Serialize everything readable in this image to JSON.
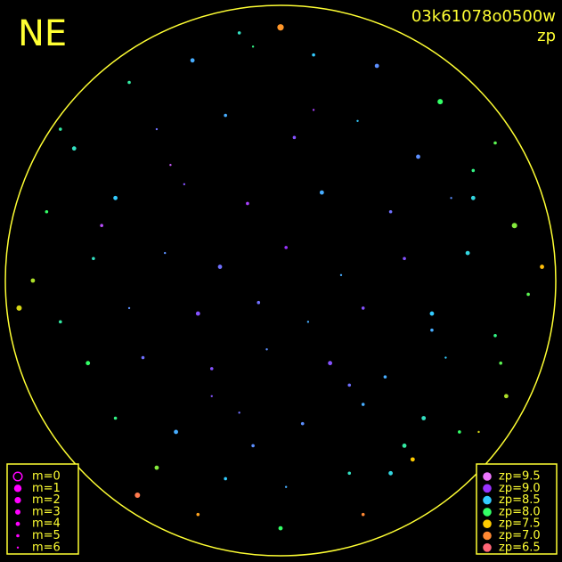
{
  "chart_data": {
    "type": "scatter",
    "title": "NE",
    "subtitle": "03k61078o0500w",
    "color_label": "zp",
    "xlim": [
      -1,
      1
    ],
    "ylim": [
      -1,
      1
    ],
    "frame_color": "#ffff33",
    "x": [
      -0.55,
      -0.32,
      -0.1,
      0.12,
      0.35,
      0.58,
      0.78,
      -0.75,
      -0.45,
      -0.2,
      0.05,
      0.28,
      0.5,
      0.7,
      -0.85,
      -0.6,
      -0.35,
      -0.12,
      0.15,
      0.4,
      0.62,
      0.85,
      -0.9,
      -0.68,
      -0.42,
      -0.22,
      0.02,
      0.22,
      0.45,
      0.68,
      0.9,
      -0.8,
      -0.55,
      -0.3,
      -0.08,
      0.1,
      0.3,
      0.55,
      0.78,
      -0.7,
      -0.5,
      -0.25,
      -0.05,
      0.18,
      0.38,
      0.6,
      0.8,
      -0.6,
      -0.38,
      -0.15,
      0.08,
      0.3,
      0.52,
      0.72,
      -0.45,
      -0.2,
      0.02,
      0.25,
      0.48,
      -0.3,
      0.0,
      0.3,
      -0.95,
      0.95,
      -0.15,
      0.45,
      -0.65,
      0.65,
      -0.4,
      0.4,
      0.0,
      -0.8,
      0.82,
      -0.25,
      0.25,
      -0.52,
      0.55,
      0.12,
      -0.1,
      0.7
    ],
    "y": [
      0.72,
      0.8,
      0.85,
      0.82,
      0.78,
      0.65,
      0.5,
      0.48,
      0.55,
      0.6,
      0.52,
      0.58,
      0.45,
      0.4,
      0.25,
      0.3,
      0.35,
      0.28,
      0.32,
      0.25,
      0.3,
      0.2,
      0.0,
      0.08,
      0.1,
      0.05,
      0.12,
      0.02,
      0.08,
      0.1,
      -0.05,
      -0.15,
      -0.1,
      -0.12,
      -0.08,
      -0.15,
      -0.1,
      -0.12,
      -0.2,
      -0.3,
      -0.28,
      -0.32,
      -0.25,
      -0.3,
      -0.35,
      -0.28,
      -0.3,
      -0.5,
      -0.55,
      -0.48,
      -0.52,
      -0.45,
      -0.5,
      -0.55,
      -0.68,
      -0.72,
      -0.75,
      -0.7,
      -0.65,
      -0.85,
      -0.9,
      -0.85,
      -0.1,
      0.05,
      0.9,
      -0.6,
      0.2,
      -0.55,
      0.42,
      -0.7,
      0.92,
      0.55,
      -0.42,
      -0.42,
      -0.38,
      -0.78,
      -0.18,
      0.62,
      -0.6,
      0.3
    ],
    "m": [
      5,
      4,
      6,
      5,
      4,
      3,
      5,
      4,
      6,
      5,
      5,
      6,
      4,
      5,
      5,
      4,
      6,
      5,
      4,
      5,
      6,
      3,
      4,
      5,
      6,
      4,
      5,
      6,
      5,
      4,
      5,
      5,
      6,
      4,
      5,
      6,
      5,
      4,
      5,
      4,
      5,
      5,
      6,
      4,
      5,
      6,
      5,
      5,
      4,
      6,
      5,
      5,
      4,
      6,
      4,
      5,
      6,
      5,
      4,
      5,
      4,
      5,
      3,
      4,
      5,
      4,
      5,
      5,
      6,
      4,
      2,
      5,
      4,
      6,
      5,
      3,
      5,
      6,
      5,
      4
    ],
    "zp": [
      8.2,
      8.6,
      8.1,
      8.5,
      8.7,
      8.0,
      7.9,
      8.3,
      8.8,
      8.6,
      8.9,
      8.5,
      8.7,
      8.1,
      8.0,
      8.5,
      8.9,
      9.1,
      8.6,
      8.8,
      8.7,
      7.8,
      7.7,
      8.3,
      8.7,
      8.8,
      9.0,
      8.6,
      8.9,
      8.4,
      7.9,
      8.2,
      8.7,
      8.9,
      8.8,
      8.6,
      8.9,
      8.5,
      8.1,
      8.0,
      8.8,
      8.9,
      8.7,
      8.9,
      8.6,
      8.5,
      7.9,
      8.1,
      8.6,
      8.8,
      8.7,
      8.6,
      8.3,
      7.6,
      7.8,
      8.5,
      8.6,
      8.3,
      7.5,
      7.2,
      8.0,
      7.0,
      7.6,
      7.4,
      8.3,
      8.2,
      9.2,
      8.0,
      9.3,
      8.4,
      7.1,
      8.2,
      7.7,
      8.9,
      8.8,
      6.8,
      8.6,
      9.1,
      8.7,
      8.4
    ],
    "size_legend": [
      {
        "value": 0,
        "label": "m=0"
      },
      {
        "value": 1,
        "label": "m=1"
      },
      {
        "value": 2,
        "label": "m=2"
      },
      {
        "value": 3,
        "label": "m=3"
      },
      {
        "value": 4,
        "label": "m=4"
      },
      {
        "value": 5,
        "label": "m=5"
      },
      {
        "value": 6,
        "label": "m=6"
      }
    ],
    "size_legend_color": "#ff00ff",
    "color_legend": [
      {
        "value": 9.5,
        "label": "zp=9.5",
        "color": "#ee77ff"
      },
      {
        "value": 9.0,
        "label": "zp=9.0",
        "color": "#9933ff"
      },
      {
        "value": 8.5,
        "label": "zp=8.5",
        "color": "#33ccff"
      },
      {
        "value": 8.0,
        "label": "zp=8.0",
        "color": "#33ff66"
      },
      {
        "value": 7.5,
        "label": "zp=7.5",
        "color": "#ffcc00"
      },
      {
        "value": 7.0,
        "label": "zp=7.0",
        "color": "#ff8833"
      },
      {
        "value": 6.5,
        "label": "zp=6.5",
        "color": "#ff6677"
      }
    ]
  }
}
